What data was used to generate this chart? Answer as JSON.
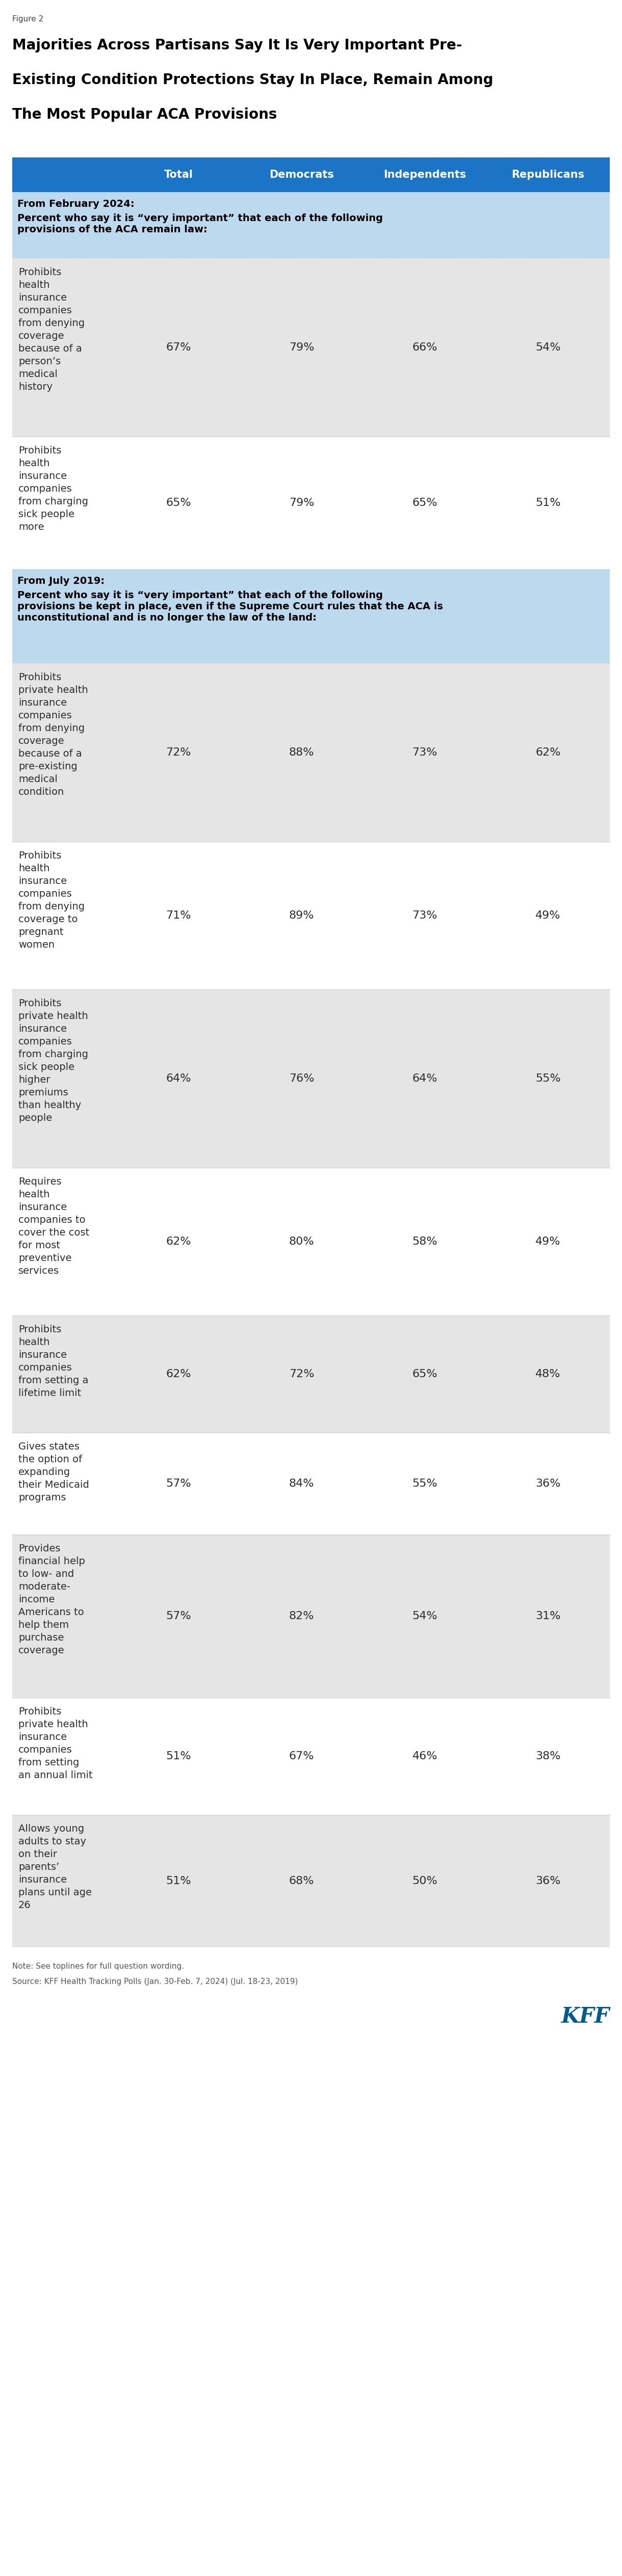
{
  "figure_label": "Figure 2",
  "title_line1": "Majorities Across Partisans Say It Is Very Important Pre-",
  "title_line2": "Existing Condition Protections Stay In Place, Remain Among",
  "title_line3": "The Most Popular ACA Provisions",
  "header_bg": "#1B74C5",
  "header_cols": [
    "Total",
    "Democrats",
    "Independents",
    "Republicans"
  ],
  "section1_bg": "#BDD9EE",
  "section1_header_bold": "From February 2024:",
  "section1_header_normal": "Percent who say it is “very important” that each of the following\nprovisions of the ACA remain law:",
  "section2_bg": "#BDD9EE",
  "section2_header_bold": "From July 2019:",
  "section2_header_normal": "Percent who say it is “very important” that each of the following\nprovisions be kept in place, even if the Supreme Court rules that the ACA is\nunconstitutional and is no longer the law of the land:",
  "rows_section1": [
    {
      "label": "Prohibits\nhealth\ninsurance\ncompanies\nfrom denying\ncoverage\nbecause of a\nperson’s\nmedical\nhistory",
      "values": [
        "67%",
        "79%",
        "66%",
        "54%"
      ],
      "bg": "#E5E5E5"
    },
    {
      "label": "Prohibits\nhealth\ninsurance\ncompanies\nfrom charging\nsick people\nmore",
      "values": [
        "65%",
        "79%",
        "65%",
        "51%"
      ],
      "bg": "#FFFFFF"
    }
  ],
  "rows_section2": [
    {
      "label": "Prohibits\nprivate health\ninsurance\ncompanies\nfrom denying\ncoverage\nbecause of a\npre-existing\nmedical\ncondition",
      "values": [
        "72%",
        "88%",
        "73%",
        "62%"
      ],
      "bg": "#E5E5E5"
    },
    {
      "label": "Prohibits\nhealth\ninsurance\ncompanies\nfrom denying\ncoverage to\npregnant\nwomen",
      "values": [
        "71%",
        "89%",
        "73%",
        "49%"
      ],
      "bg": "#FFFFFF"
    },
    {
      "label": "Prohibits\nprivate health\ninsurance\ncompanies\nfrom charging\nsick people\nhigher\npremiums\nthan healthy\npeople",
      "values": [
        "64%",
        "76%",
        "64%",
        "55%"
      ],
      "bg": "#E5E5E5"
    },
    {
      "label": "Requires\nhealth\ninsurance\ncompanies to\ncover the cost\nfor most\npreventive\nservices",
      "values": [
        "62%",
        "80%",
        "58%",
        "49%"
      ],
      "bg": "#FFFFFF"
    },
    {
      "label": "Prohibits\nhealth\ninsurance\ncompanies\nfrom setting a\nlifetime limit",
      "values": [
        "62%",
        "72%",
        "65%",
        "48%"
      ],
      "bg": "#E5E5E5"
    },
    {
      "label": "Gives states\nthe option of\nexpanding\ntheir Medicaid\nprograms",
      "values": [
        "57%",
        "84%",
        "55%",
        "36%"
      ],
      "bg": "#FFFFFF"
    },
    {
      "label": "Provides\nfinancial help\nto low- and\nmoderate-\nincome\nAmericans to\nhelp them\npurchase\ncoverage",
      "values": [
        "57%",
        "82%",
        "54%",
        "31%"
      ],
      "bg": "#E5E5E5"
    },
    {
      "label": "Prohibits\nprivate health\ninsurance\ncompanies\nfrom setting\nan annual limit",
      "values": [
        "51%",
        "67%",
        "46%",
        "38%"
      ],
      "bg": "#FFFFFF"
    },
    {
      "label": "Allows young\nadults to stay\non their\nparents’\ninsurance\nplans until age\n26",
      "values": [
        "51%",
        "68%",
        "50%",
        "36%"
      ],
      "bg": "#E5E5E5"
    }
  ],
  "note": "Note: See toplines for full question wording.",
  "source": "Source: KFF Health Tracking Polls (Jan. 30-Feb. 7, 2024) (Jul. 18-23, 2019)",
  "kff_color": "#005A8E",
  "text_color": "#2C2C2C",
  "label_color": "#2C2C2C",
  "value_color": "#2C2C2C"
}
